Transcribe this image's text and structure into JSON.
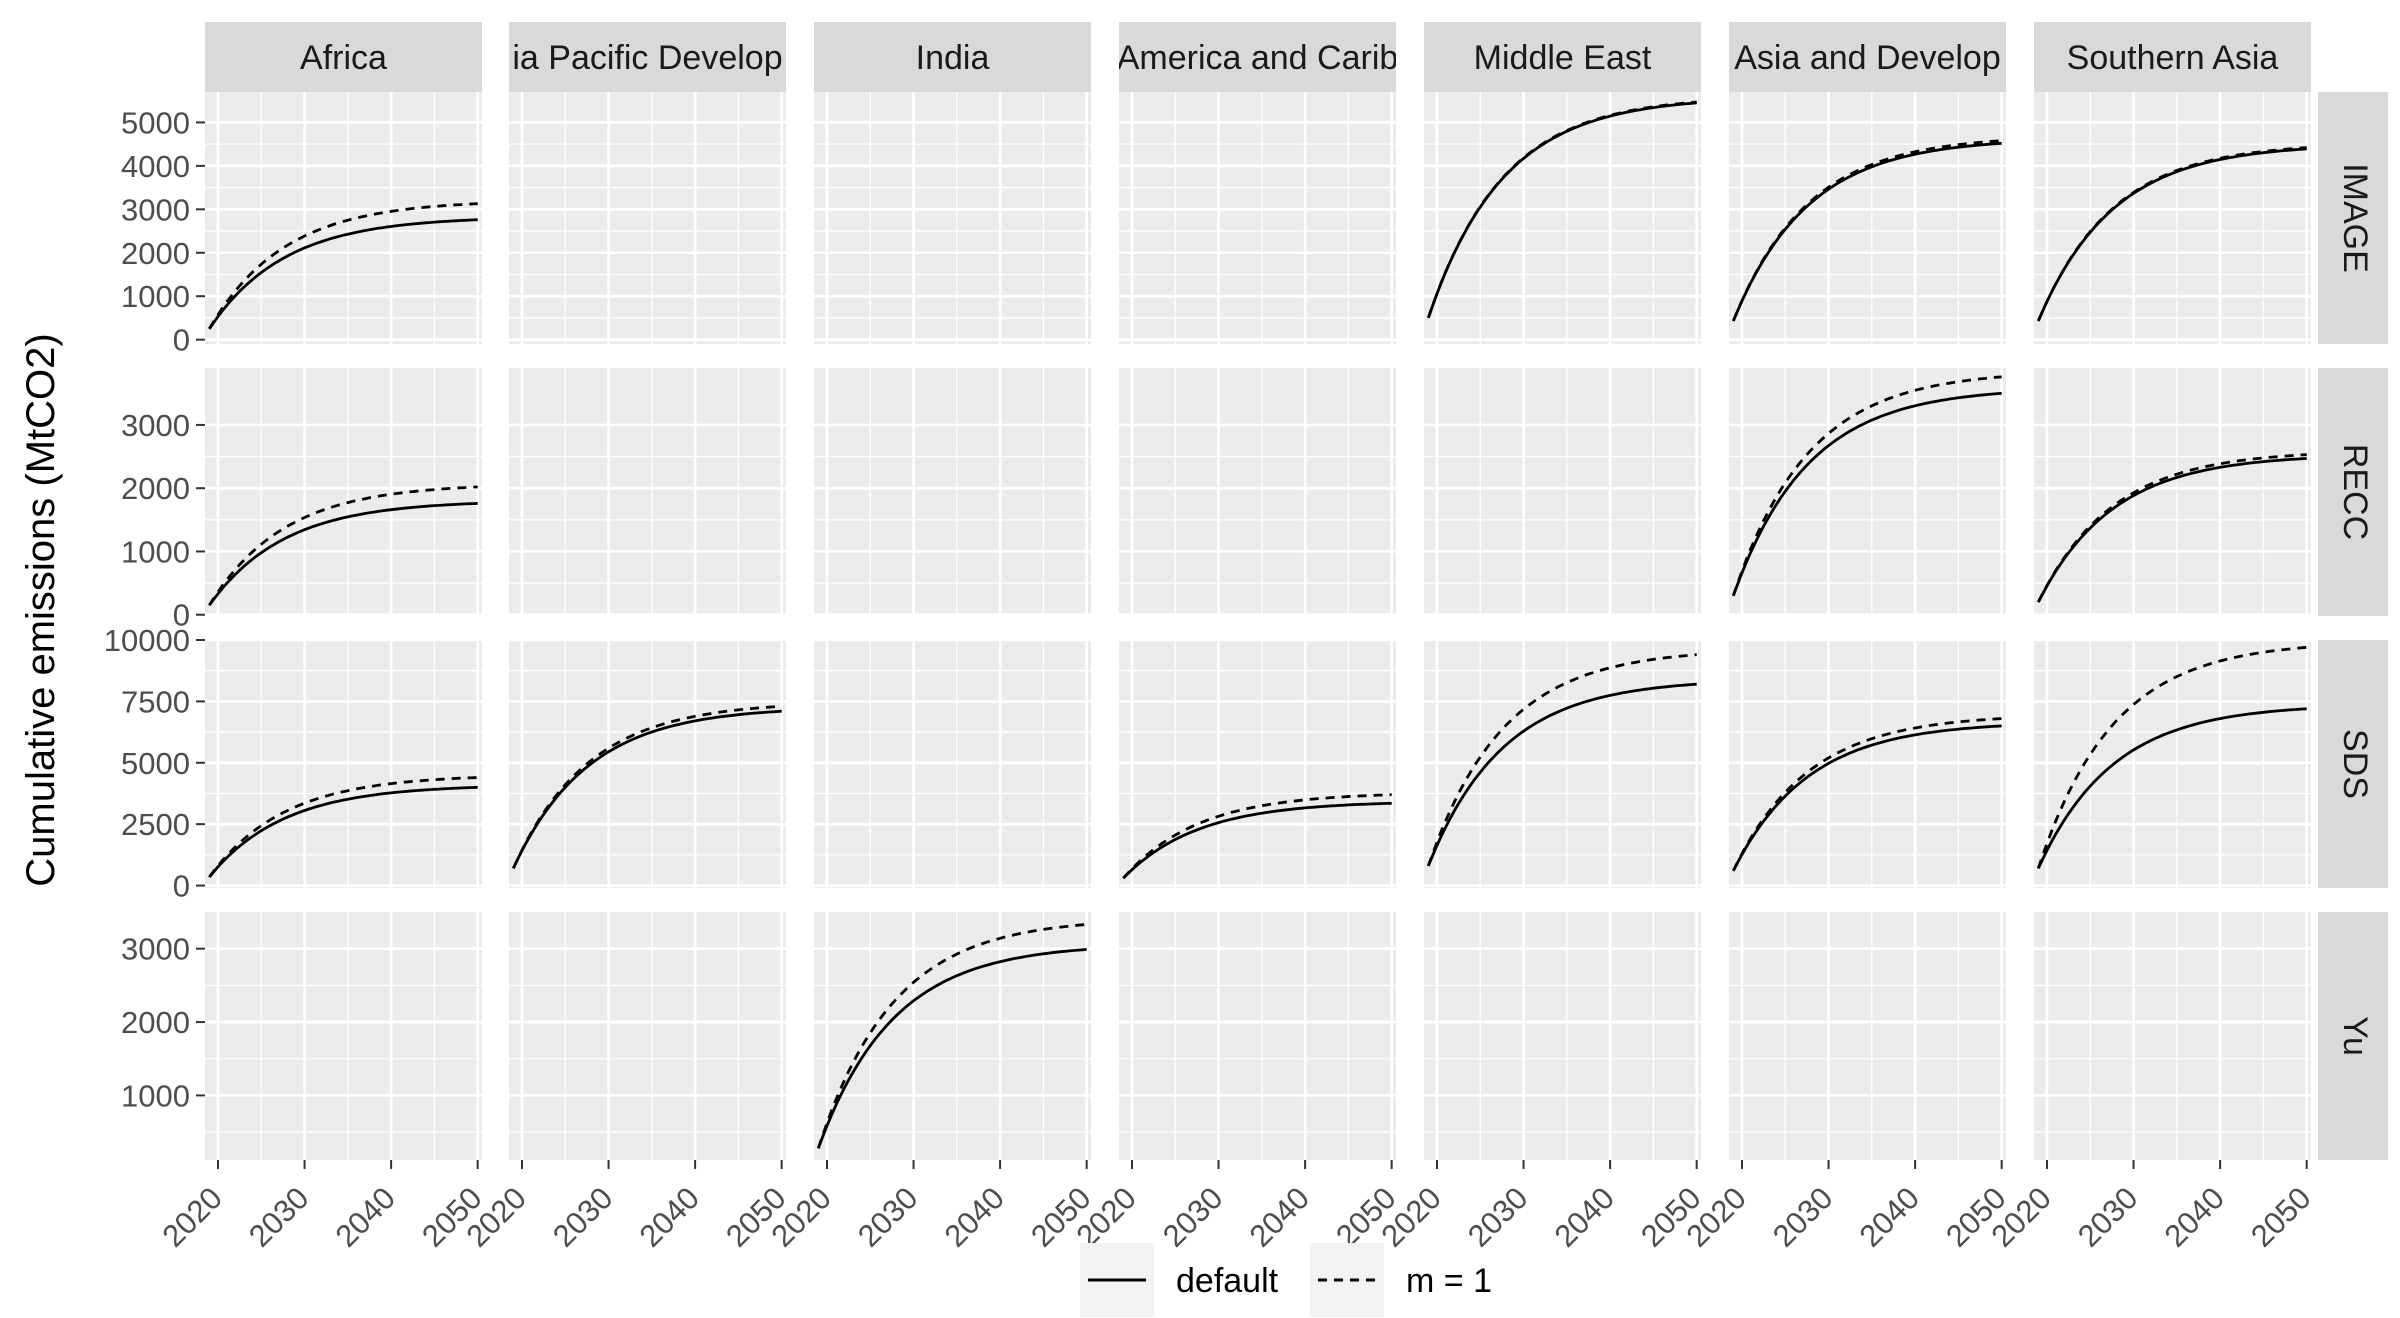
{
  "chart_data": {
    "type": "line",
    "facet_columns": [
      "Africa",
      "Asia Pacific Developed",
      "India",
      "Latin America and Caribbean",
      "Middle East",
      "Other Asia and Developing Pacific",
      "Southern Asia"
    ],
    "facet_column_labels": [
      "Africa",
      "ia Pacific Develop",
      "India",
      "America and Carib",
      "Middle East",
      "Asia and Develop",
      "Southern Asia"
    ],
    "facet_rows": [
      "IMAGE",
      "RECC",
      "SDS",
      "Yu"
    ],
    "xlabel": "",
    "ylabel": "Cumulative emissions (MtCO2)",
    "x_ticks": [
      2020,
      2030,
      2040,
      2050
    ],
    "xlim": [
      2018.5,
      2050.5
    ],
    "row_scales": {
      "IMAGE": {
        "ylim": [
          -100,
          5700
        ],
        "ticks": [
          0,
          1000,
          2000,
          3000,
          4000,
          5000
        ]
      },
      "RECC": {
        "ylim": [
          -20,
          3900
        ],
        "ticks": [
          0,
          1000,
          2000,
          3000
        ]
      },
      "SDS": {
        "ylim": [
          -100,
          10000
        ],
        "ticks": [
          0,
          2500,
          5000,
          7500,
          10000
        ]
      },
      "Yu": {
        "ylim": [
          120,
          3500
        ],
        "ticks": [
          1000,
          2000,
          3000
        ]
      }
    },
    "legend": {
      "position": "bottom",
      "entries": [
        {
          "name": "default",
          "linetype": "solid"
        },
        {
          "name": "m = 1",
          "linetype": "dashed"
        }
      ]
    },
    "colors": {
      "panel_bg": "#ebebeb",
      "strip_bg": "#d9d9d9",
      "grid": "#ffffff",
      "line": "#000000"
    },
    "series": [
      {
        "row": "IMAGE",
        "col": "Africa",
        "default": {
          "start": 250,
          "end": 2760
        },
        "m1": {
          "start": 250,
          "end": 3130
        }
      },
      {
        "row": "IMAGE",
        "col": "Middle East",
        "default": {
          "start": 500,
          "end": 5450
        },
        "m1": {
          "start": 500,
          "end": 5470
        }
      },
      {
        "row": "IMAGE",
        "col": "Other Asia and Developing Pacific",
        "default": {
          "start": 430,
          "end": 4520
        },
        "m1": {
          "start": 430,
          "end": 4580
        }
      },
      {
        "row": "IMAGE",
        "col": "Southern Asia",
        "default": {
          "start": 430,
          "end": 4390
        },
        "m1": {
          "start": 430,
          "end": 4420
        }
      },
      {
        "row": "RECC",
        "col": "Africa",
        "default": {
          "start": 150,
          "end": 1760
        },
        "m1": {
          "start": 150,
          "end": 2020
        }
      },
      {
        "row": "RECC",
        "col": "Other Asia and Developing Pacific",
        "default": {
          "start": 300,
          "end": 3500
        },
        "m1": {
          "start": 300,
          "end": 3760
        }
      },
      {
        "row": "RECC",
        "col": "Southern Asia",
        "default": {
          "start": 200,
          "end": 2470
        },
        "m1": {
          "start": 200,
          "end": 2530
        }
      },
      {
        "row": "SDS",
        "col": "Africa",
        "default": {
          "start": 350,
          "end": 4000
        },
        "m1": {
          "start": 350,
          "end": 4400
        }
      },
      {
        "row": "SDS",
        "col": "Asia Pacific Developed",
        "default": {
          "start": 700,
          "end": 7100
        },
        "m1": {
          "start": 700,
          "end": 7300
        }
      },
      {
        "row": "SDS",
        "col": "Latin America and Caribbean",
        "default": {
          "start": 300,
          "end": 3350
        },
        "m1": {
          "start": 300,
          "end": 3700
        }
      },
      {
        "row": "SDS",
        "col": "Middle East",
        "default": {
          "start": 800,
          "end": 8200
        },
        "m1": {
          "start": 800,
          "end": 9400
        }
      },
      {
        "row": "SDS",
        "col": "Other Asia and Developing Pacific",
        "default": {
          "start": 600,
          "end": 6500
        },
        "m1": {
          "start": 600,
          "end": 6800
        }
      },
      {
        "row": "SDS",
        "col": "Southern Asia",
        "default": {
          "start": 700,
          "end": 7200
        },
        "m1": {
          "start": 700,
          "end": 9700
        }
      },
      {
        "row": "Yu",
        "col": "India",
        "default": {
          "start": 280,
          "end": 2990
        },
        "m1": {
          "start": 280,
          "end": 3330
        }
      }
    ]
  }
}
